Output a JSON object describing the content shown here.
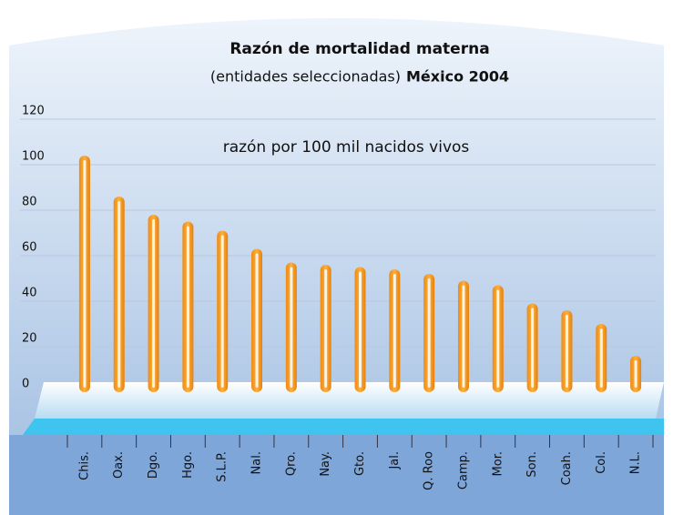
{
  "chart_data": {
    "type": "bar",
    "title": "Razón de mortalidad materna",
    "subtitle": "(entidades seleccionadas)",
    "subtitle_bold": "México 2004",
    "annotation": "razón por 100 mil nacidos vivos",
    "categories": [
      "Chis.",
      "Oax.",
      "Dgo.",
      "Hgo.",
      "S.L.P.",
      "Nal.",
      "Qro.",
      "Nay.",
      "Gto.",
      "Jal.",
      "Q. Roo",
      "Camp.",
      "Mor.",
      "Son.",
      "Coah.",
      "Col.",
      "N.L."
    ],
    "values": [
      104,
      86,
      78,
      75,
      71,
      63,
      57,
      56,
      55,
      54,
      52,
      49,
      47,
      39,
      36,
      30,
      16
    ],
    "color": "#f7941d",
    "ylim": [
      0,
      120
    ],
    "yticks": [
      0,
      20,
      40,
      60,
      80,
      100,
      120
    ],
    "grid": true
  }
}
